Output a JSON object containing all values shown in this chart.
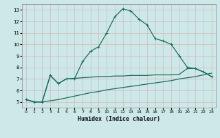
{
  "xlabel": "Humidex (Indice chaleur)",
  "bg_color": "#cce8e8",
  "grid_color": "#b8d8d8",
  "line_color": "#1a6b5a",
  "xlim": [
    -0.5,
    23.5
  ],
  "ylim": [
    4.5,
    13.5
  ],
  "xticks": [
    0,
    1,
    2,
    3,
    4,
    5,
    6,
    7,
    8,
    9,
    10,
    11,
    12,
    13,
    14,
    15,
    16,
    17,
    18,
    19,
    20,
    21,
    22,
    23
  ],
  "yticks": [
    5,
    6,
    7,
    8,
    9,
    10,
    11,
    12,
    13
  ],
  "curve1_x": [
    0,
    1,
    2,
    3,
    4,
    5,
    6,
    7,
    8,
    9,
    10,
    11,
    12,
    13,
    14,
    15,
    16,
    17,
    18,
    19,
    20,
    21,
    22,
    23
  ],
  "curve1_y": [
    5.2,
    5.0,
    5.0,
    7.3,
    6.6,
    7.0,
    7.0,
    8.5,
    9.4,
    9.8,
    11.0,
    12.4,
    13.1,
    12.9,
    12.2,
    11.7,
    10.5,
    10.3,
    10.0,
    9.0,
    8.0,
    7.9,
    7.6,
    7.2
  ],
  "curve2_x": [
    0,
    1,
    2,
    3,
    4,
    5,
    6,
    7,
    8,
    9,
    10,
    11,
    12,
    13,
    14,
    15,
    16,
    17,
    18,
    19,
    20,
    21,
    22,
    23
  ],
  "curve2_y": [
    5.2,
    5.0,
    5.0,
    7.3,
    6.6,
    7.0,
    7.05,
    7.1,
    7.15,
    7.2,
    7.2,
    7.25,
    7.25,
    7.3,
    7.3,
    7.3,
    7.35,
    7.35,
    7.35,
    7.4,
    7.9,
    7.9,
    7.6,
    7.2
  ],
  "curve3_x": [
    0,
    1,
    2,
    3,
    4,
    5,
    6,
    7,
    8,
    9,
    10,
    11,
    12,
    13,
    14,
    15,
    16,
    17,
    18,
    19,
    20,
    21,
    22,
    23
  ],
  "curve3_y": [
    5.2,
    5.0,
    5.0,
    5.1,
    5.2,
    5.35,
    5.5,
    5.65,
    5.8,
    5.9,
    6.05,
    6.15,
    6.25,
    6.35,
    6.45,
    6.55,
    6.65,
    6.75,
    6.85,
    7.0,
    7.1,
    7.2,
    7.35,
    7.5
  ]
}
